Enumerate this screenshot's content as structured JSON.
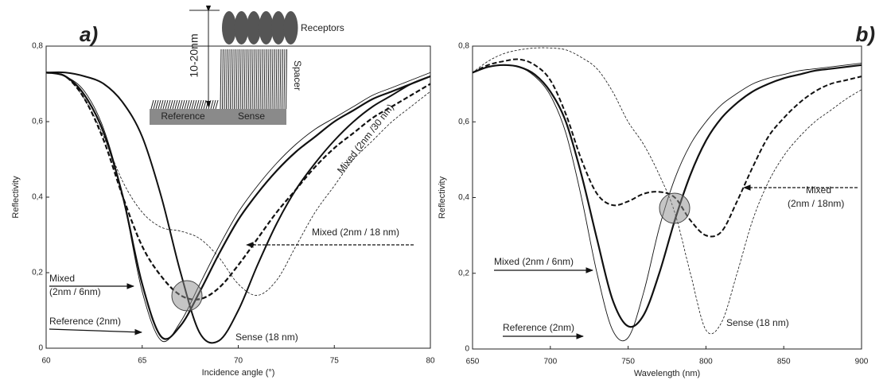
{
  "chart_data": [
    {
      "type": "line",
      "panel_label": "a)",
      "x_label": "Incidence angle (°)",
      "y_label": "Reflectivity",
      "x": [
        60,
        61,
        62,
        63,
        64,
        65,
        66,
        67,
        68,
        69,
        70,
        71,
        72,
        73,
        74,
        75,
        76,
        77,
        78,
        79,
        80
      ],
      "xlim": [
        60,
        80
      ],
      "xticks": [
        60,
        65,
        70,
        75,
        80
      ],
      "ylim": [
        0,
        0.8
      ],
      "yticks": [
        0,
        {
          "value": 0.2,
          "label": "0,2"
        },
        {
          "value": 0.4,
          "label": "0,4"
        },
        {
          "value": 0.6,
          "label": "0,6"
        },
        {
          "value": 0.8,
          "label": "0,8"
        }
      ],
      "series": [
        {
          "color": "#111111",
          "style": "solid",
          "width": 0.9,
          "values": [
            0.73,
            0.72,
            0.68,
            0.58,
            0.4,
            0.15,
            0.02,
            0.07,
            0.17,
            0.27,
            0.36,
            0.43,
            0.49,
            0.54,
            0.58,
            0.61,
            0.64,
            0.67,
            0.69,
            0.71,
            0.73
          ]
        },
        {
          "color": "#111111",
          "style": "solid",
          "width": 2.2,
          "values": [
            0.73,
            0.72,
            0.67,
            0.57,
            0.4,
            0.17,
            0.03,
            0.06,
            0.15,
            0.25,
            0.34,
            0.41,
            0.47,
            0.52,
            0.56,
            0.6,
            0.63,
            0.66,
            0.68,
            0.7,
            0.72
          ]
        },
        {
          "color": "#111111",
          "style": "dashed",
          "width": 2.2,
          "values": [
            0.73,
            0.72,
            0.66,
            0.55,
            0.4,
            0.27,
            0.19,
            0.14,
            0.13,
            0.16,
            0.22,
            0.29,
            0.36,
            0.42,
            0.48,
            0.53,
            0.57,
            0.61,
            0.64,
            0.67,
            0.7
          ]
        },
        {
          "color": "#111111",
          "style": "dashed",
          "width": 0.8,
          "values": [
            0.73,
            0.72,
            0.66,
            0.56,
            0.44,
            0.36,
            0.32,
            0.31,
            0.29,
            0.24,
            0.17,
            0.14,
            0.18,
            0.27,
            0.36,
            0.43,
            0.5,
            0.55,
            0.6,
            0.64,
            0.68
          ]
        },
        {
          "color": "#111111",
          "style": "solid",
          "width": 2.0,
          "values": [
            0.73,
            0.73,
            0.72,
            0.7,
            0.65,
            0.56,
            0.4,
            0.2,
            0.04,
            0.02,
            0.1,
            0.22,
            0.33,
            0.42,
            0.49,
            0.55,
            0.6,
            0.64,
            0.67,
            0.7,
            0.72
          ]
        }
      ],
      "annotations": [
        "Mixed (2nm /30 nm)",
        "Mixed (2nm / 18 nm)",
        "Mixed",
        "(2nm / 6nm)",
        "Reference (2nm)",
        "Sense (18 nm)"
      ],
      "inset_labels": [
        "Receptors",
        "Spacer",
        "10-20nm",
        "Reference",
        "Sense"
      ]
    },
    {
      "type": "line",
      "panel_label": "b)",
      "x_label": "Wavelength (nm)",
      "y_label": "Reflectivity",
      "x": [
        650,
        660,
        670,
        680,
        690,
        700,
        710,
        720,
        730,
        740,
        750,
        760,
        770,
        780,
        790,
        800,
        810,
        820,
        830,
        840,
        850,
        860,
        870,
        880,
        890,
        900
      ],
      "xlim": [
        650,
        900
      ],
      "xticks": [
        650,
        700,
        750,
        800,
        850,
        900
      ],
      "ylim": [
        0,
        0.8
      ],
      "yticks": [
        0,
        {
          "value": 0.2,
          "label": "0,2"
        },
        {
          "value": 0.4,
          "label": "0,4"
        },
        {
          "value": 0.6,
          "label": "0,6"
        },
        {
          "value": 0.8,
          "label": "0,8"
        }
      ],
      "series": [
        {
          "color": "#111111",
          "style": "solid",
          "width": 0.9,
          "values": [
            0.73,
            0.745,
            0.75,
            0.745,
            0.72,
            0.67,
            0.57,
            0.4,
            0.2,
            0.05,
            0.03,
            0.15,
            0.32,
            0.45,
            0.54,
            0.6,
            0.645,
            0.675,
            0.7,
            0.715,
            0.725,
            0.735,
            0.74,
            0.745,
            0.75,
            0.755
          ]
        },
        {
          "color": "#111111",
          "style": "solid",
          "width": 2.2,
          "values": [
            0.73,
            0.745,
            0.75,
            0.745,
            0.725,
            0.68,
            0.6,
            0.46,
            0.29,
            0.13,
            0.06,
            0.09,
            0.2,
            0.34,
            0.46,
            0.55,
            0.61,
            0.65,
            0.68,
            0.7,
            0.715,
            0.725,
            0.735,
            0.74,
            0.745,
            0.75
          ]
        },
        {
          "color": "#111111",
          "style": "dashed",
          "width": 2.0,
          "values": [
            0.73,
            0.75,
            0.76,
            0.765,
            0.75,
            0.71,
            0.62,
            0.5,
            0.41,
            0.38,
            0.39,
            0.41,
            0.415,
            0.4,
            0.34,
            0.3,
            0.31,
            0.39,
            0.48,
            0.56,
            0.61,
            0.65,
            0.68,
            0.7,
            0.71,
            0.72
          ]
        },
        {
          "color": "#111111",
          "style": "dashed",
          "width": 0.8,
          "values": [
            0.73,
            0.76,
            0.78,
            0.79,
            0.795,
            0.795,
            0.79,
            0.77,
            0.74,
            0.68,
            0.6,
            0.54,
            0.46,
            0.36,
            0.2,
            0.05,
            0.07,
            0.2,
            0.34,
            0.44,
            0.51,
            0.56,
            0.6,
            0.63,
            0.66,
            0.685
          ]
        }
      ],
      "annotations": [
        "Mixed",
        "(2nm / 18nm)",
        "Mixed (2nm / 6nm)",
        "Reference (2nm)",
        "Sense (18 nm)"
      ]
    }
  ]
}
